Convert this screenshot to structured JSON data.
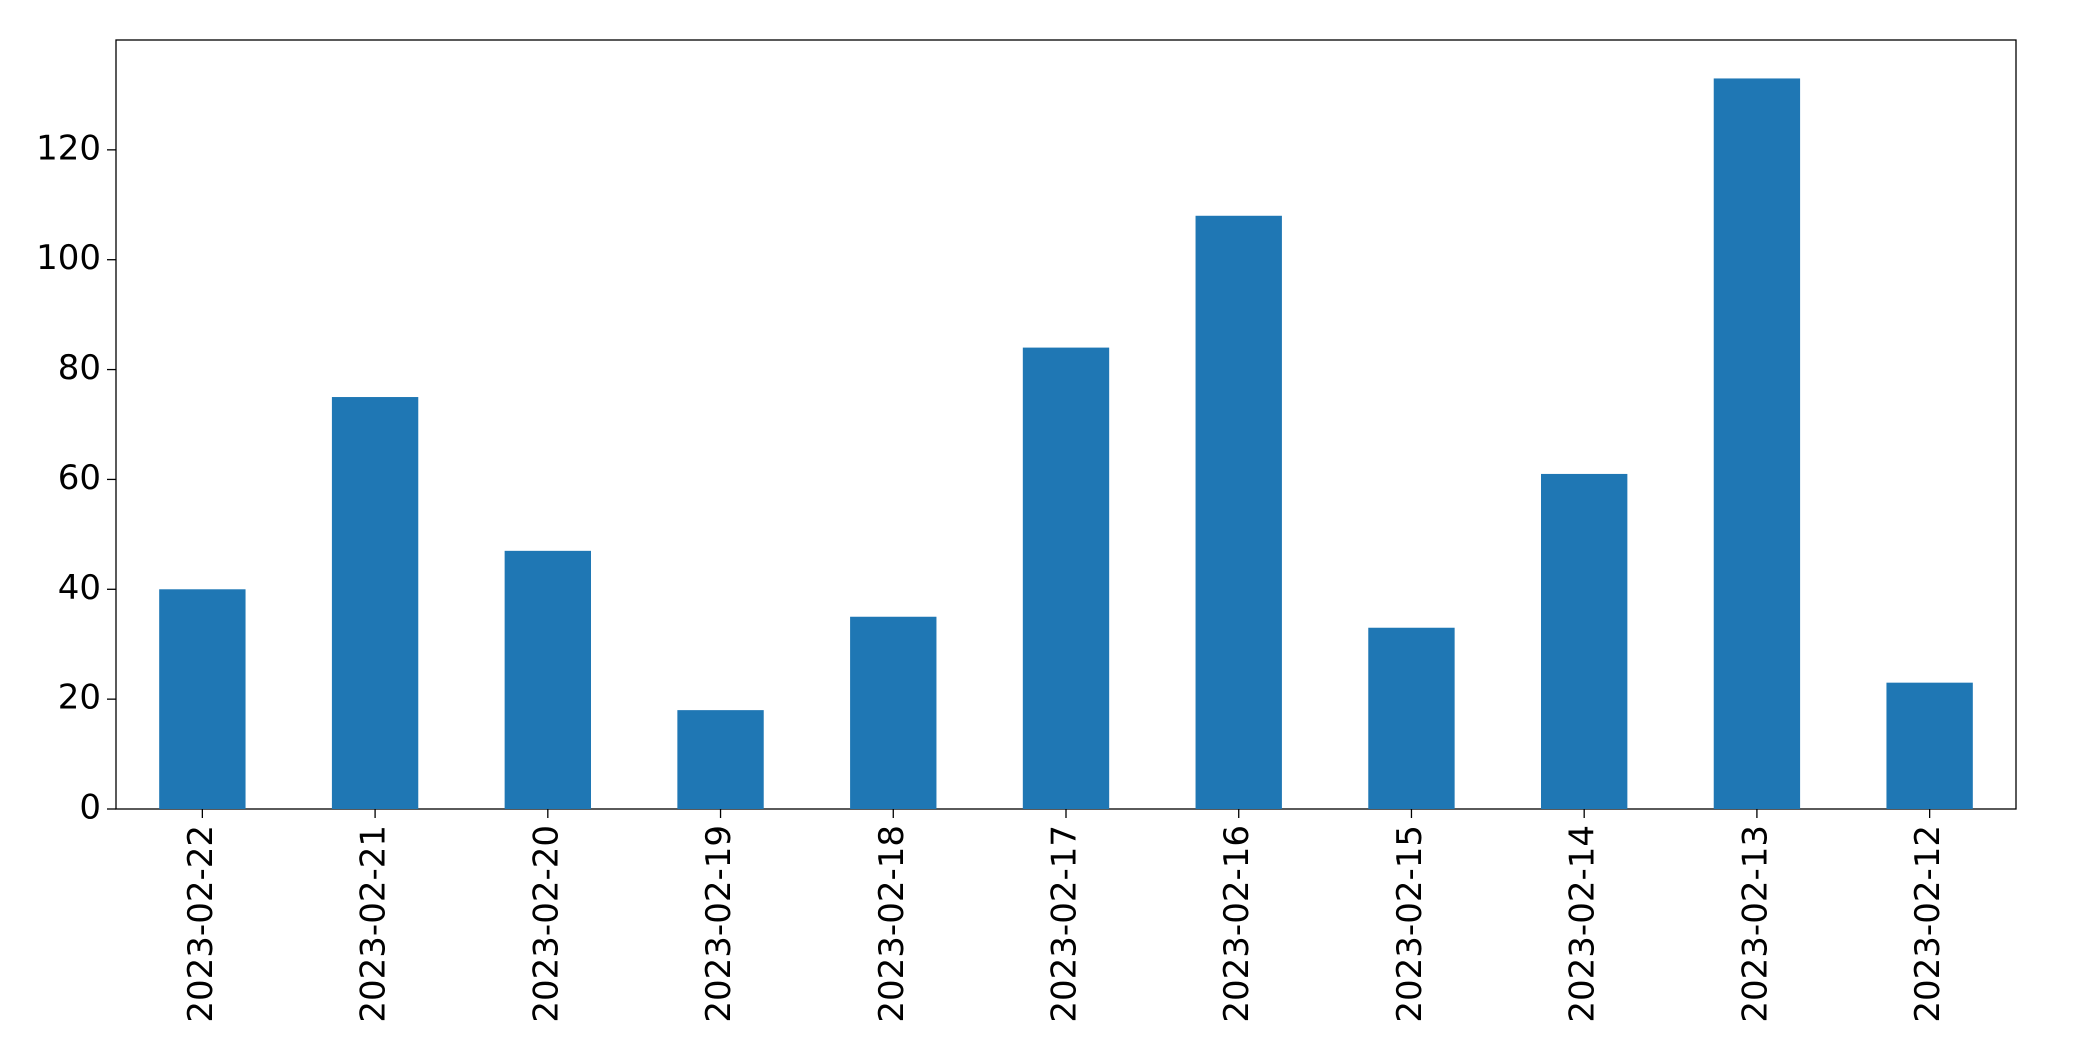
{
  "chart_data": {
    "type": "bar",
    "categories": [
      "2023-02-22",
      "2023-02-21",
      "2023-02-20",
      "2023-02-19",
      "2023-02-18",
      "2023-02-17",
      "2023-02-16",
      "2023-02-15",
      "2023-02-14",
      "2023-02-13",
      "2023-02-12"
    ],
    "values": [
      40,
      75,
      47,
      18,
      35,
      84,
      108,
      33,
      61,
      133,
      23
    ],
    "color": "#1f77b4",
    "ylim": [
      0,
      140
    ],
    "yticks": [
      0,
      20,
      40,
      60,
      80,
      100,
      120
    ],
    "grid": false
  }
}
